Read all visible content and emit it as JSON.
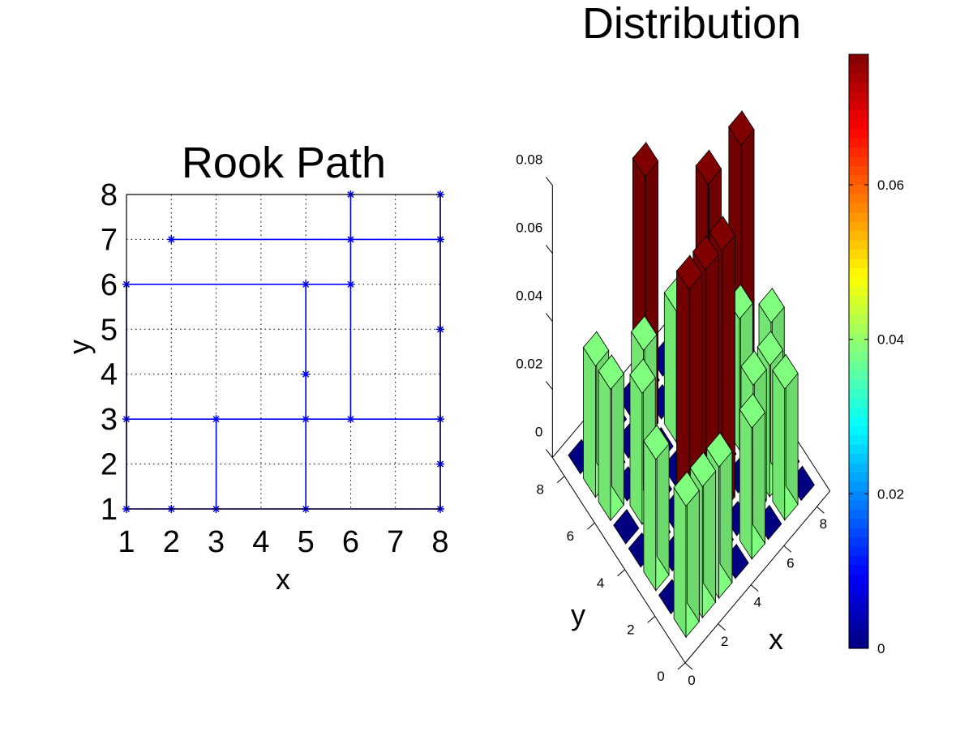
{
  "chart_data": [
    {
      "type": "line",
      "title": "Rook Path",
      "xlabel": "x",
      "ylabel": "y",
      "xlim": [
        1,
        8
      ],
      "ylim": [
        1,
        8
      ],
      "xticks": [
        "1",
        "2",
        "3",
        "4",
        "5",
        "6",
        "7",
        "8"
      ],
      "yticks": [
        "1",
        "2",
        "3",
        "4",
        "5",
        "6",
        "7",
        "8"
      ],
      "grid": true,
      "line_color": "#0000ff",
      "marker": "*",
      "segments": [
        [
          [
            1,
            1
          ],
          [
            8,
            1
          ]
        ],
        [
          [
            1,
            1
          ],
          [
            1,
            6
          ]
        ],
        [
          [
            1,
            3
          ],
          [
            8,
            3
          ]
        ],
        [
          [
            1,
            6
          ],
          [
            6,
            6
          ]
        ],
        [
          [
            2,
            7
          ],
          [
            8,
            7
          ]
        ],
        [
          [
            3,
            1
          ],
          [
            3,
            3
          ]
        ],
        [
          [
            5,
            1
          ],
          [
            5,
            6
          ]
        ],
        [
          [
            6,
            3
          ],
          [
            6,
            8
          ]
        ],
        [
          [
            8,
            1
          ],
          [
            8,
            8
          ]
        ]
      ],
      "points": [
        [
          1,
          1
        ],
        [
          2,
          1
        ],
        [
          3,
          1
        ],
        [
          5,
          1
        ],
        [
          8,
          1
        ],
        [
          8,
          2
        ],
        [
          1,
          3
        ],
        [
          3,
          3
        ],
        [
          5,
          3
        ],
        [
          6,
          3
        ],
        [
          8,
          3
        ],
        [
          5,
          4
        ],
        [
          8,
          5
        ],
        [
          1,
          6
        ],
        [
          5,
          6
        ],
        [
          6,
          6
        ],
        [
          2,
          7
        ],
        [
          6,
          7
        ],
        [
          8,
          7
        ],
        [
          6,
          8
        ],
        [
          8,
          8
        ]
      ]
    },
    {
      "type": "bar3d",
      "title": "Distribution",
      "xlabel": "x",
      "ylabel": "y",
      "x_ticks": [
        "0",
        "2",
        "4",
        "6",
        "8"
      ],
      "y_ticks": [
        "0",
        "2",
        "4",
        "6",
        "8"
      ],
      "z_ticks": [
        "0",
        "0.02",
        "0.04",
        "0.06",
        "0.08"
      ],
      "zlim": [
        0,
        0.08
      ],
      "colormap": "jet",
      "colorbar": {
        "range": [
          0,
          0.0769
        ],
        "ticks": [
          "0",
          "0.02",
          "0.04",
          "0.06"
        ],
        "tick_values": [
          0,
          0.02,
          0.04,
          0.06
        ]
      },
      "bars": [
        {
          "x": 1,
          "y": 1,
          "value": 0.0385
        },
        {
          "x": 1,
          "y": 3,
          "value": 0.0385
        },
        {
          "x": 1,
          "y": 6,
          "value": 0.0385
        },
        {
          "x": 1,
          "y": 7,
          "value": 0.0385
        },
        {
          "x": 2,
          "y": 1,
          "value": 0.0385
        },
        {
          "x": 2,
          "y": 5,
          "value": 0.0385
        },
        {
          "x": 3,
          "y": 1,
          "value": 0.0385
        },
        {
          "x": 3,
          "y": 3,
          "value": 0.0769
        },
        {
          "x": 3,
          "y": 6,
          "value": 0.0385
        },
        {
          "x": 4,
          "y": 3,
          "value": 0.0769
        },
        {
          "x": 4,
          "y": 7,
          "value": 0.0769
        },
        {
          "x": 5,
          "y": 1,
          "value": 0.0385
        },
        {
          "x": 5,
          "y": 3,
          "value": 0.0769
        },
        {
          "x": 5,
          "y": 5,
          "value": 0.0385
        },
        {
          "x": 5,
          "y": 6,
          "value": 0.0385
        },
        {
          "x": 6,
          "y": 2,
          "value": 0.0385
        },
        {
          "x": 6,
          "y": 5,
          "value": 0.0769
        },
        {
          "x": 7,
          "y": 1,
          "value": 0.0385
        },
        {
          "x": 7,
          "y": 2,
          "value": 0.0385
        },
        {
          "x": 7,
          "y": 4,
          "value": 0.0385
        },
        {
          "x": 8,
          "y": 3,
          "value": 0.0385
        },
        {
          "x": 8,
          "y": 5,
          "value": 0.0769
        }
      ]
    }
  ]
}
